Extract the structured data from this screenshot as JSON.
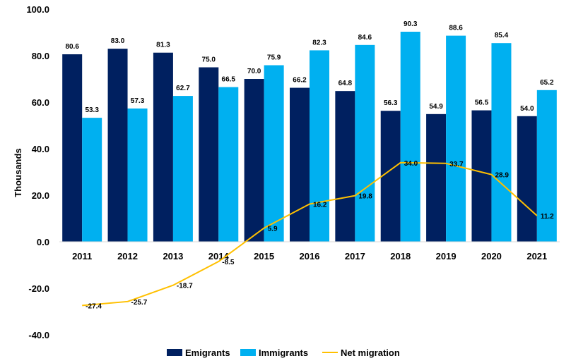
{
  "chart_data": {
    "type": "bar",
    "title": "",
    "xlabel": "",
    "ylabel": "Thousands",
    "ylim": [
      -40,
      100
    ],
    "yticks": [
      -40,
      -20,
      0,
      20,
      40,
      60,
      80,
      100
    ],
    "ytick_labels": [
      "-40.0",
      "-20.0",
      "0.0",
      "20.0",
      "40.0",
      "60.0",
      "80.0",
      "100.0"
    ],
    "grid": false,
    "legend_position": "bottom-center",
    "categories": [
      "2011",
      "2012",
      "2013",
      "2014",
      "2015",
      "2016",
      "2017",
      "2018",
      "2019",
      "2020",
      "2021"
    ],
    "series": [
      {
        "name": "Emigrants",
        "kind": "bar",
        "color": "#002060",
        "values": [
          80.6,
          83.0,
          81.3,
          75.0,
          70.0,
          66.2,
          64.8,
          56.3,
          54.9,
          56.5,
          54.0
        ],
        "labels": [
          "80.6",
          "83.0",
          "81.3",
          "75.0",
          "70.0",
          "66.2",
          "64.8",
          "56.3",
          "54.9",
          "56.5",
          "54.0"
        ]
      },
      {
        "name": "Immigrants",
        "kind": "bar",
        "color": "#00B0F0",
        "values": [
          53.3,
          57.3,
          62.7,
          66.5,
          75.9,
          82.3,
          84.6,
          90.3,
          88.6,
          85.4,
          65.2
        ],
        "labels": [
          "53.3",
          "57.3",
          "62.7",
          "66.5",
          "75.9",
          "82.3",
          "84.6",
          "90.3",
          "88.6",
          "85.4",
          "65.2"
        ]
      },
      {
        "name": "Net migration",
        "kind": "line",
        "color": "#FFC000",
        "values": [
          -27.4,
          -25.7,
          -18.7,
          -8.5,
          5.9,
          16.2,
          19.8,
          34.0,
          33.7,
          28.9,
          11.2
        ],
        "labels": [
          "-27.4",
          "-25.7",
          "-18.7",
          "-8.5",
          "5.9",
          "16.2",
          "19.8",
          "34.0",
          "33.7",
          "28.9",
          "11.2"
        ]
      }
    ]
  }
}
